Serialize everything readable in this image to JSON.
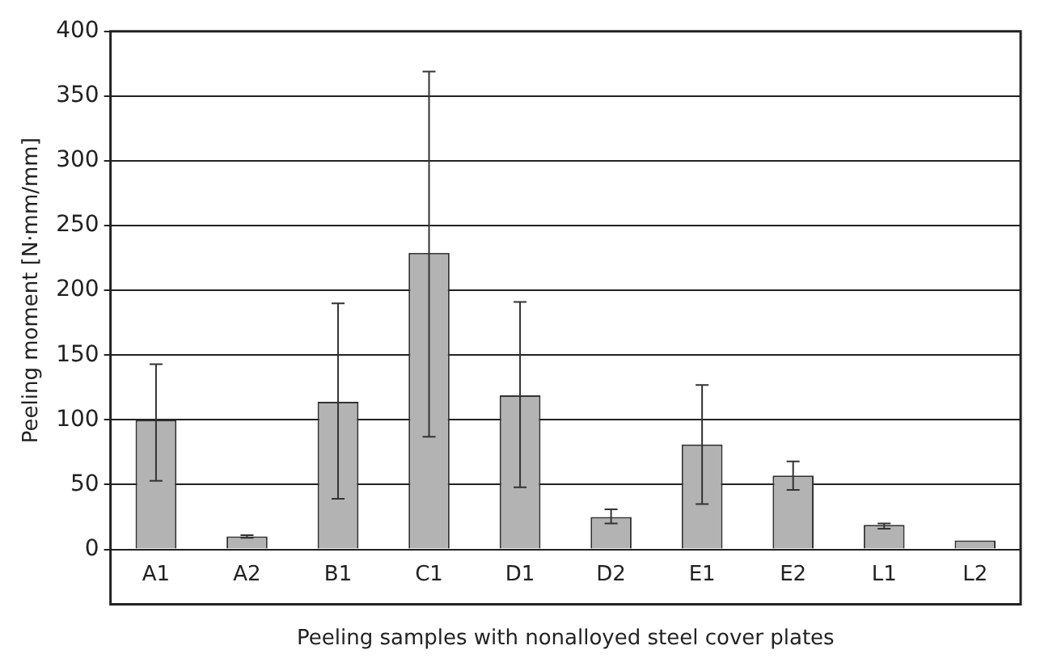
{
  "chart_data": {
    "type": "bar",
    "xlabel": "Peeling samples with nonalloyed steel cover plates",
    "ylabel": "Peeling moment [N·mm/mm]",
    "categories": [
      "A1",
      "A2",
      "B1",
      "C1",
      "D1",
      "D2",
      "E1",
      "E2",
      "L1",
      "L2"
    ],
    "values": [
      100,
      10,
      114,
      229,
      119,
      25,
      81,
      57,
      19,
      7
    ],
    "errors": [
      [
        53,
        143
      ],
      [
        9,
        11
      ],
      [
        39,
        190
      ],
      [
        87,
        369
      ],
      [
        48,
        191
      ],
      [
        20,
        31
      ],
      [
        35,
        127
      ],
      [
        46,
        68
      ],
      [
        16,
        20
      ],
      null
    ],
    "color": "#b3b3b3",
    "ylim": [
      0,
      400
    ],
    "yticks": [
      0,
      50,
      100,
      150,
      200,
      250,
      300,
      350,
      400
    ],
    "grid": "y"
  }
}
